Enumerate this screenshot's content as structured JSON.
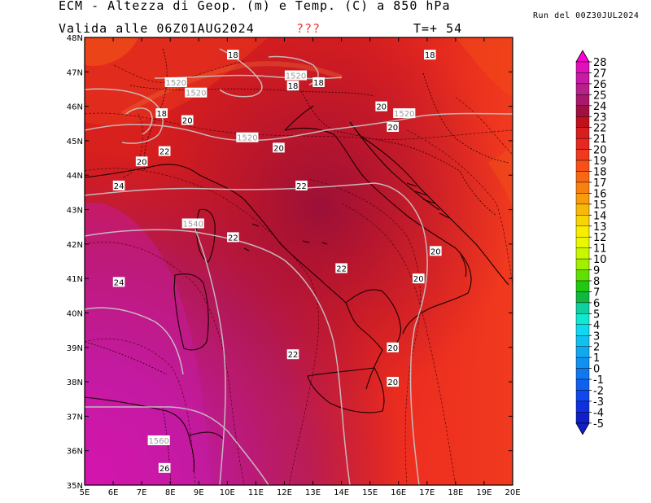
{
  "header": {
    "title": "ECM - Altezza di Geop. (m) e Temp. (C) a 850 hPa",
    "valid": "Valida alle 06Z01AUG2024",
    "marker": "???",
    "step": "T=+ 54",
    "run": "Run del 00Z30JUL2024"
  },
  "axes": {
    "lon_labels": [
      "5E",
      "6E",
      "7E",
      "8E",
      "9E",
      "10E",
      "11E",
      "12E",
      "13E",
      "14E",
      "15E",
      "16E",
      "17E",
      "18E",
      "19E",
      "20E"
    ],
    "lat_labels": [
      "48N",
      "47N",
      "46N",
      "45N",
      "44N",
      "43N",
      "42N",
      "41N",
      "40N",
      "39N",
      "38N",
      "37N",
      "36N",
      "35N"
    ]
  },
  "colorbar": {
    "labels": [
      "28",
      "27",
      "26",
      "25",
      "24",
      "23",
      "22",
      "21",
      "20",
      "19",
      "18",
      "17",
      "16",
      "15",
      "14",
      "13",
      "12",
      "11",
      "10",
      "9",
      "8",
      "7",
      "6",
      "5",
      "4",
      "3",
      "2",
      "1",
      "0",
      "-1",
      "-2",
      "-3",
      "-4",
      "-5"
    ],
    "colors": [
      "#ff00d0",
      "#e010b8",
      "#c81aa4",
      "#b8208c",
      "#a8186c",
      "#a01040",
      "#c0101c",
      "#d81e1e",
      "#e82820",
      "#f03a1e",
      "#f85018",
      "#f86814",
      "#f88010",
      "#f89c0c",
      "#f8b808",
      "#f8d404",
      "#f8ec00",
      "#e8f800",
      "#c8f800",
      "#a0f000",
      "#60e000",
      "#20c810",
      "#10b840",
      "#10d0a0",
      "#10e8d0",
      "#10d8f0",
      "#10c0f0",
      "#10a8f0",
      "#1090f0",
      "#1078f0",
      "#1060f0",
      "#1048f0",
      "#1030e0",
      "#1020c8"
    ]
  },
  "map_labels": {
    "geopotential": [
      {
        "text": "1520",
        "lon": 8.2,
        "lat": 46.7
      },
      {
        "text": "1520",
        "lon": 8.9,
        "lat": 46.4
      },
      {
        "text": "1520",
        "lon": 12.4,
        "lat": 46.9
      },
      {
        "text": "1520",
        "lon": 10.7,
        "lat": 45.1
      },
      {
        "text": "1520",
        "lon": 16.2,
        "lat": 45.8
      },
      {
        "text": "1540",
        "lon": 8.8,
        "lat": 42.6
      },
      {
        "text": "1560",
        "lon": 7.6,
        "lat": 36.3
      }
    ],
    "temperature": [
      {
        "text": "18",
        "lon": 10.2,
        "lat": 47.5
      },
      {
        "text": "18",
        "lon": 12.3,
        "lat": 46.6
      },
      {
        "text": "18",
        "lon": 13.2,
        "lat": 46.7
      },
      {
        "text": "18",
        "lon": 17.1,
        "lat": 47.5
      },
      {
        "text": "18",
        "lon": 7.7,
        "lat": 45.8
      },
      {
        "text": "20",
        "lon": 8.6,
        "lat": 45.6
      },
      {
        "text": "20",
        "lon": 11.8,
        "lat": 44.8
      },
      {
        "text": "20",
        "lon": 15.4,
        "lat": 46.0
      },
      {
        "text": "20",
        "lon": 15.8,
        "lat": 45.4
      },
      {
        "text": "20",
        "lon": 7.0,
        "lat": 44.4
      },
      {
        "text": "22",
        "lon": 7.8,
        "lat": 44.7
      },
      {
        "text": "22",
        "lon": 12.6,
        "lat": 43.7
      },
      {
        "text": "22",
        "lon": 10.2,
        "lat": 42.2
      },
      {
        "text": "22",
        "lon": 14.0,
        "lat": 41.3
      },
      {
        "text": "22",
        "lon": 12.3,
        "lat": 38.8
      },
      {
        "text": "24",
        "lon": 6.2,
        "lat": 43.7
      },
      {
        "text": "24",
        "lon": 6.2,
        "lat": 40.9
      },
      {
        "text": "26",
        "lon": 7.8,
        "lat": 35.5
      },
      {
        "text": "20",
        "lon": 17.3,
        "lat": 41.8
      },
      {
        "text": "20",
        "lon": 16.7,
        "lat": 41.0
      },
      {
        "text": "20",
        "lon": 15.8,
        "lat": 38.0
      },
      {
        "text": "20",
        "lon": 15.8,
        "lat": 39.0
      }
    ]
  }
}
